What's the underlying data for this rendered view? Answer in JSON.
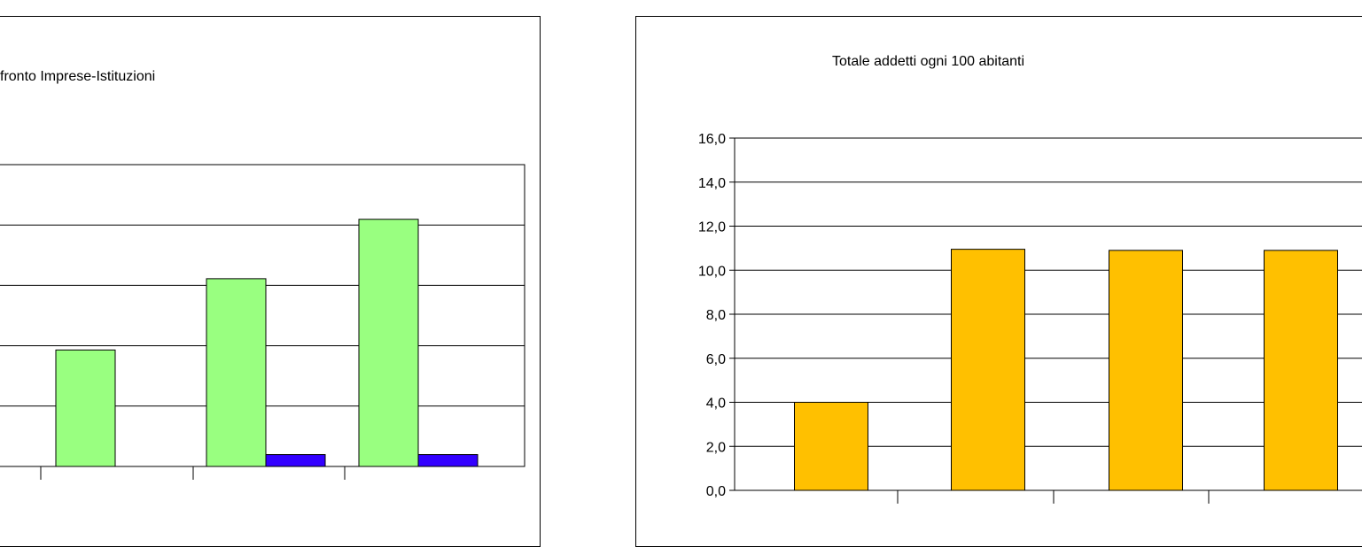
{
  "chart_data": [
    {
      "type": "bar",
      "title": "fronto Imprese-Istituzioni",
      "categories": [
        "",
        "",
        ""
      ],
      "series": [
        {
          "values": [
            4.9,
            7.9,
            10.4
          ],
          "color": "#99ff80"
        },
        {
          "values": [
            0,
            0.5,
            0.5
          ],
          "color": "#3300ff"
        }
      ],
      "ylim": [
        0,
        12.7
      ],
      "grid": true
    },
    {
      "type": "bar",
      "title": "Totale addetti ogni 100 abitanti",
      "categories": [
        "",
        "",
        "",
        ""
      ],
      "series": [
        {
          "values": [
            4.0,
            10.95,
            10.9,
            10.9
          ],
          "color": "#ffc000"
        }
      ],
      "ylim": [
        0,
        16
      ],
      "yticks": [
        "0,0",
        "2,0",
        "4,0",
        "6,0",
        "8,0",
        "10,0",
        "12,0",
        "14,0",
        "16,0"
      ],
      "grid": true
    }
  ]
}
